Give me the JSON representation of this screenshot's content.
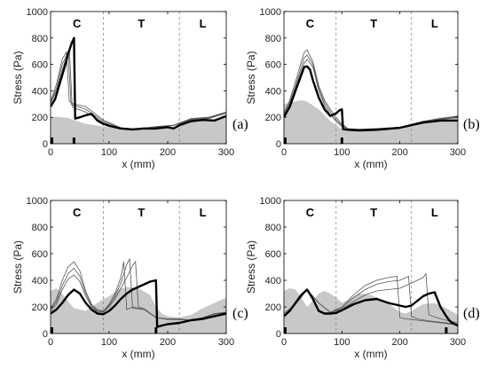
{
  "figure": {
    "ylabel": "Stress (Pa)",
    "xlabel": "x (mm)",
    "regions": [
      "C",
      "T",
      "L"
    ],
    "region_boundaries": [
      90,
      220
    ]
  },
  "chart_data": [
    {
      "panel_label": "(a)",
      "type": "line",
      "xlim": [
        0,
        300
      ],
      "ylim": [
        0,
        1000
      ],
      "xticks": [
        0,
        100,
        200,
        300
      ],
      "yticks": [
        0,
        200,
        400,
        600,
        800,
        1000
      ],
      "xlabel": "x (mm)",
      "ylabel": "Stress (Pa)",
      "marker_x": [
        0,
        40
      ],
      "background_fill": {
        "x": [
          0,
          10,
          30,
          60,
          90,
          120,
          150,
          180,
          200,
          220,
          240,
          260,
          280,
          300
        ],
        "y": [
          200,
          205,
          195,
          150,
          130,
          115,
          110,
          115,
          120,
          140,
          175,
          185,
          185,
          215
        ]
      },
      "thin_lines": [
        {
          "x": [
            0,
            10,
            20,
            27,
            32,
            40,
            60,
            90,
            120,
            150,
            180,
            210,
            240,
            270,
            300
          ],
          "y": [
            320,
            450,
            640,
            695,
            320,
            300,
            280,
            180,
            120,
            110,
            130,
            140,
            190,
            200,
            240
          ]
        },
        {
          "x": [
            0,
            10,
            20,
            30,
            35,
            40,
            60,
            90,
            120,
            150,
            180,
            210,
            240,
            270,
            300
          ],
          "y": [
            310,
            420,
            600,
            700,
            300,
            290,
            260,
            170,
            115,
            110,
            125,
            140,
            185,
            195,
            235
          ]
        },
        {
          "x": [
            0,
            10,
            20,
            32,
            37,
            40,
            60,
            90,
            120,
            150,
            180,
            210,
            240,
            270,
            300
          ],
          "y": [
            305,
            400,
            560,
            720,
            280,
            270,
            240,
            160,
            110,
            108,
            120,
            138,
            180,
            190,
            230
          ]
        }
      ],
      "bold_line": {
        "x": [
          0,
          8,
          16,
          24,
          30,
          36,
          40,
          42,
          50,
          60,
          70,
          80,
          90,
          100,
          120,
          140,
          160,
          180,
          200,
          210,
          220,
          240,
          260,
          280,
          300
        ],
        "y": [
          280,
          340,
          460,
          580,
          680,
          760,
          800,
          190,
          200,
          215,
          225,
          175,
          150,
          135,
          115,
          108,
          115,
          115,
          125,
          115,
          140,
          170,
          180,
          175,
          210
        ]
      }
    },
    {
      "panel_label": "(b)",
      "type": "line",
      "xlim": [
        0,
        300
      ],
      "ylim": [
        0,
        1000
      ],
      "xticks": [
        0,
        100,
        200,
        300
      ],
      "yticks": [
        0,
        200,
        400,
        600,
        800,
        1000
      ],
      "xlabel": "x (mm)",
      "ylabel": "Stress (Pa)",
      "marker_x": [
        0,
        100
      ],
      "background_fill": {
        "x": [
          0,
          10,
          20,
          30,
          40,
          60,
          80,
          90,
          100,
          110,
          130,
          160,
          200,
          230,
          250,
          270,
          290,
          300
        ],
        "y": [
          300,
          310,
          320,
          330,
          320,
          260,
          170,
          140,
          110,
          105,
          100,
          100,
          110,
          140,
          180,
          200,
          205,
          215
        ]
      },
      "thin_lines": [
        {
          "x": [
            0,
            10,
            20,
            30,
            35,
            40,
            50,
            60,
            70,
            80,
            90,
            100,
            110,
            130,
            160,
            200,
            240,
            270,
            300
          ],
          "y": [
            230,
            330,
            470,
            620,
            690,
            710,
            620,
            440,
            330,
            260,
            200,
            150,
            115,
            110,
            115,
            125,
            170,
            190,
            210
          ]
        },
        {
          "x": [
            0,
            10,
            20,
            30,
            35,
            40,
            50,
            60,
            70,
            80,
            90,
            100,
            110,
            130,
            160,
            200,
            240,
            270,
            300
          ],
          "y": [
            220,
            310,
            440,
            580,
            650,
            670,
            600,
            420,
            310,
            240,
            180,
            140,
            110,
            108,
            112,
            122,
            165,
            185,
            205
          ]
        },
        {
          "x": [
            0,
            10,
            20,
            30,
            35,
            40,
            50,
            60,
            70,
            80,
            90,
            100,
            110,
            130,
            160,
            200,
            240,
            270,
            300
          ],
          "y": [
            210,
            290,
            420,
            550,
            610,
            640,
            580,
            400,
            290,
            220,
            170,
            130,
            108,
            105,
            110,
            120,
            160,
            180,
            200
          ]
        }
      ],
      "bold_line": {
        "x": [
          0,
          10,
          20,
          30,
          35,
          40,
          45,
          50,
          60,
          70,
          80,
          90,
          95,
          100,
          102,
          110,
          130,
          160,
          200,
          240,
          270,
          300
        ],
        "y": [
          200,
          280,
          400,
          520,
          580,
          585,
          560,
          480,
          350,
          260,
          210,
          230,
          250,
          260,
          110,
          105,
          100,
          105,
          120,
          160,
          175,
          175
        ]
      }
    },
    {
      "panel_label": "(c)",
      "type": "line",
      "xlim": [
        0,
        300
      ],
      "ylim": [
        0,
        1000
      ],
      "xticks": [
        0,
        100,
        200,
        300
      ],
      "yticks": [
        0,
        200,
        400,
        600,
        800,
        1000
      ],
      "xlabel": "x (mm)",
      "ylabel": "Stress (Pa)",
      "marker_x": [
        0,
        180
      ],
      "background_fill": {
        "x": [
          0,
          10,
          20,
          30,
          40,
          60,
          80,
          90,
          100,
          115,
          130,
          150,
          170,
          180,
          190,
          200,
          220,
          240,
          260,
          280,
          300
        ],
        "y": [
          320,
          340,
          300,
          240,
          190,
          170,
          230,
          260,
          280,
          330,
          350,
          340,
          290,
          200,
          150,
          130,
          120,
          140,
          190,
          230,
          270
        ]
      },
      "thin_lines": [
        {
          "x": [
            0,
            10,
            20,
            30,
            40,
            50,
            60,
            70,
            80,
            90,
            100,
            110,
            120,
            125,
            130,
            140,
            160,
            180,
            200,
            220,
            240,
            260,
            280,
            300
          ],
          "y": [
            190,
            260,
            400,
            500,
            540,
            470,
            320,
            220,
            180,
            170,
            220,
            300,
            420,
            540,
            180,
            200,
            180,
            120,
            110,
            110,
            100,
            120,
            150,
            160
          ]
        },
        {
          "x": [
            0,
            10,
            20,
            30,
            40,
            50,
            60,
            70,
            80,
            90,
            100,
            110,
            120,
            130,
            135,
            140,
            160,
            180,
            200,
            220,
            240,
            260,
            280,
            300
          ],
          "y": [
            180,
            240,
            360,
            450,
            490,
            430,
            300,
            210,
            170,
            165,
            210,
            280,
            380,
            520,
            560,
            190,
            180,
            120,
            108,
            108,
            100,
            118,
            148,
            158
          ]
        },
        {
          "x": [
            0,
            10,
            20,
            30,
            40,
            50,
            60,
            70,
            80,
            90,
            100,
            110,
            120,
            130,
            140,
            145,
            150,
            160,
            180,
            200,
            220,
            240,
            260,
            280,
            300
          ],
          "y": [
            170,
            220,
            330,
            410,
            440,
            390,
            280,
            200,
            165,
            160,
            200,
            260,
            340,
            420,
            510,
            540,
            200,
            185,
            120,
            105,
            105,
            98,
            115,
            145,
            155
          ]
        }
      ],
      "bold_line": {
        "x": [
          0,
          10,
          20,
          30,
          40,
          50,
          60,
          70,
          80,
          90,
          100,
          110,
          120,
          130,
          140,
          150,
          160,
          170,
          180,
          182,
          190,
          200,
          220,
          240,
          260,
          280,
          300
        ],
        "y": [
          150,
          180,
          230,
          290,
          330,
          300,
          230,
          180,
          150,
          145,
          170,
          210,
          260,
          300,
          330,
          350,
          370,
          390,
          400,
          50,
          60,
          70,
          80,
          100,
          110,
          130,
          150
        ]
      }
    },
    {
      "panel_label": "(d)",
      "type": "line",
      "xlim": [
        0,
        300
      ],
      "ylim": [
        0,
        1000
      ],
      "xticks": [
        0,
        100,
        200,
        300
      ],
      "yticks": [
        0,
        200,
        400,
        600,
        800,
        1000
      ],
      "xlabel": "x (mm)",
      "ylabel": "Stress (Pa)",
      "marker_x": [
        0,
        280
      ],
      "background_fill": {
        "x": [
          0,
          10,
          20,
          30,
          40,
          50,
          60,
          70,
          80,
          90,
          100,
          110,
          130,
          150,
          180,
          200,
          210,
          220,
          240,
          260,
          280,
          300
        ],
        "y": [
          320,
          340,
          330,
          270,
          200,
          250,
          300,
          320,
          300,
          270,
          230,
          250,
          300,
          290,
          230,
          160,
          150,
          170,
          220,
          230,
          190,
          140
        ]
      },
      "thin_lines": [
        {
          "x": [
            0,
            20,
            40,
            60,
            80,
            100,
            120,
            140,
            160,
            180,
            195,
            200,
            210,
            230,
            250,
            270,
            290,
            300
          ],
          "y": [
            150,
            220,
            330,
            230,
            160,
            200,
            290,
            360,
            400,
            420,
            430,
            120,
            110,
            100,
            90,
            80,
            70,
            60
          ]
        },
        {
          "x": [
            0,
            20,
            40,
            60,
            80,
            100,
            120,
            140,
            160,
            180,
            200,
            215,
            220,
            230,
            250,
            270,
            290,
            300
          ],
          "y": [
            150,
            220,
            330,
            230,
            160,
            190,
            270,
            330,
            370,
            390,
            400,
            430,
            130,
            110,
            95,
            85,
            75,
            65
          ]
        },
        {
          "x": [
            0,
            20,
            40,
            60,
            80,
            100,
            120,
            140,
            160,
            180,
            200,
            220,
            240,
            245,
            250,
            270,
            290,
            300
          ],
          "y": [
            150,
            220,
            330,
            230,
            160,
            180,
            240,
            290,
            320,
            330,
            340,
            380,
            420,
            450,
            140,
            110,
            90,
            80
          ]
        }
      ],
      "bold_line": {
        "x": [
          0,
          10,
          20,
          30,
          40,
          50,
          60,
          70,
          80,
          90,
          100,
          120,
          140,
          160,
          180,
          200,
          210,
          220,
          240,
          250,
          260,
          270,
          280,
          285,
          290,
          300
        ],
        "y": [
          130,
          170,
          230,
          290,
          330,
          260,
          170,
          150,
          150,
          155,
          175,
          220,
          250,
          260,
          230,
          210,
          200,
          210,
          280,
          300,
          310,
          200,
          130,
          100,
          80,
          60
        ]
      }
    }
  ]
}
